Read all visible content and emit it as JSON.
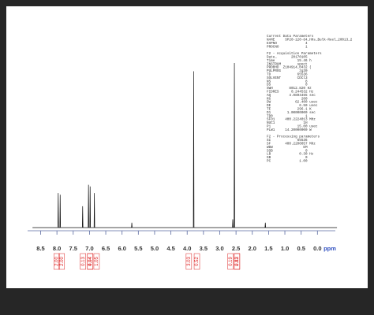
{
  "chart_data": {
    "type": "line",
    "x_label": "ppm",
    "xlim": [
      8.9,
      -0.55
    ],
    "ylim": [
      0,
      100
    ],
    "color": "#111111",
    "xticks": [
      8.5,
      {
        "value": 8,
        "label": "8.0"
      },
      7.5,
      {
        "value": 7,
        "label": "7.0"
      },
      6.5,
      {
        "value": 6,
        "label": "6.0"
      },
      5.5,
      {
        "value": 5,
        "label": "5.0"
      },
      4.5,
      {
        "value": 4,
        "label": "4.0"
      },
      3.5,
      {
        "value": 3,
        "label": "3.0"
      },
      2.5,
      {
        "value": 2,
        "label": "2.0"
      },
      1.5,
      {
        "value": 1,
        "label": "1.0"
      },
      0.5,
      {
        "value": 0,
        "label": "0.0"
      }
    ],
    "x": [
      8.75,
      7.97,
      7.96,
      7.95,
      7.91,
      7.9,
      7.89,
      7.22,
      7.21,
      7.2,
      7.04,
      7.03,
      7.02,
      6.99,
      6.98,
      6.97,
      6.86,
      6.85,
      6.84,
      5.71,
      5.7,
      5.69,
      3.81,
      3.8,
      3.79,
      2.61,
      2.6,
      2.59,
      2.56,
      2.55,
      2.54,
      1.61,
      1.6,
      1.59,
      -0.6
    ],
    "values": [
      0,
      0,
      21,
      0,
      0,
      20,
      0,
      0,
      13,
      0,
      0,
      26,
      0,
      0,
      25,
      0,
      0,
      21,
      0,
      0,
      3,
      0,
      0,
      95,
      0,
      0,
      5,
      0,
      0,
      100,
      0,
      0,
      3,
      0,
      0
    ],
    "integrals": [
      {
        "x": 7.96,
        "label": "2.00"
      },
      {
        "x": 7.9,
        "label": "2.00"
      },
      {
        "x": 7.15,
        "label": "0.13"
      },
      {
        "x": 7.03,
        "label": "4.04"
      },
      {
        "x": 6.93,
        "label": "0.94"
      },
      {
        "x": 6.83,
        "label": "1.05"
      },
      {
        "x": 3.9,
        "label": "3.03"
      },
      {
        "x": 3.75,
        "label": "0.52"
      },
      {
        "x": 2.62,
        "label": "0.19"
      },
      {
        "x": 2.52,
        "label": "0.13"
      },
      {
        "x": 2.42,
        "label": "2.82"
      }
    ],
    "parameters": {
      "header": [
        "Current Data Parameters",
        "NAME     SP20-120-84_HHs_Bulk-Reel_20013_2",
        "EXPNO              4",
        "PROCNO             1"
      ],
      "acquisition": [
        "F2 - Acquisition Parameters",
        "Date_       20170105",
        "Time           15.46 h",
        "INSTRUM        spect",
        "PROBHD  Z104914_0432 (",
        "PULPROG         zg30",
        "TD             65536",
        "SOLVENT        CDCl3",
        "NS                 8",
        "DS                 0",
        "SWH        8012.820 Hz",
        "FIDRES      0.244532 Hz",
        "AQ         4.0894465 sec",
        "RG               200",
        "DW            62.400 usec",
        "DE              6.50 usec",
        "TE             296.1 K",
        "D1        1.00000000 sec",
        "TD0                1",
        "SFO1     400.2224013 MHz",
        "NUC1              1H",
        "P1             15.00 usec",
        "PLW1     14.20000000 W"
      ],
      "processing": [
        "F2 - Processing parameters",
        "SI             65536",
        "SF       400.2200057 MHz",
        "WDW               EM",
        "SSB                0",
        "LB              0.30 Hz",
        "GB                 0",
        "PC              1.00"
      ]
    }
  }
}
